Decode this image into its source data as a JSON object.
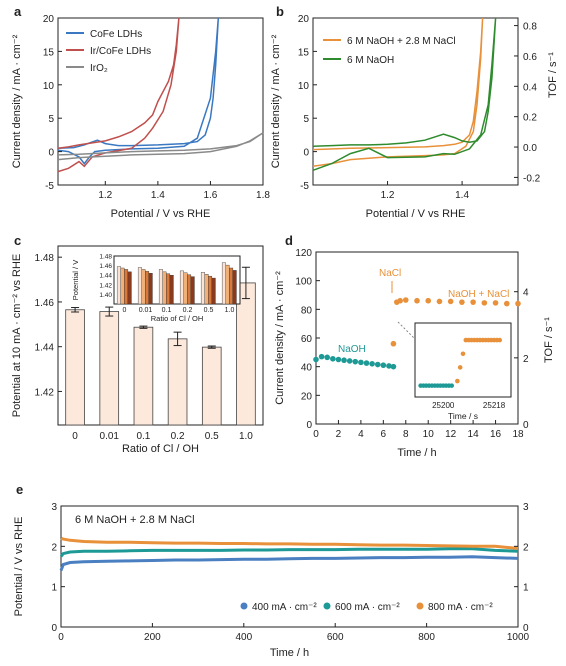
{
  "chart_data": [
    {
      "id": "a",
      "panel_label": "a",
      "type": "line",
      "xlabel": "Potential / V vs RHE",
      "ylabel": "Current density / mA · cm⁻²",
      "xlim": [
        1.02,
        1.8
      ],
      "ylim": [
        -5,
        20
      ],
      "xticks": [
        "1.2",
        "1.4",
        "1.6",
        "1.8"
      ],
      "yticks": [
        "-5",
        "0",
        "5",
        "10",
        "15",
        "20"
      ],
      "legend_position": "top-left",
      "series": [
        {
          "name": "CoFe LDHs",
          "color": "#3a78c2",
          "x": [
            1.02,
            1.08,
            1.1,
            1.12,
            1.14,
            1.17,
            1.2,
            1.25,
            1.3,
            1.4,
            1.5,
            1.55,
            1.58,
            1.6,
            1.61,
            1.62,
            1.63,
            1.62,
            1.6,
            1.55,
            1.5,
            1.4,
            1.3,
            1.2,
            1.16,
            1.14,
            1.12,
            1.1,
            1.06,
            1.02
          ],
          "y": [
            0.5,
            0.6,
            0.8,
            1.0,
            1.3,
            1.7,
            1.2,
            0.9,
            0.9,
            1.0,
            1.2,
            1.5,
            2.5,
            5,
            8,
            13,
            20,
            15,
            8,
            2,
            0.8,
            0.5,
            0.4,
            0.2,
            0.0,
            -0.8,
            -1.8,
            -0.8,
            0.0,
            0.2
          ]
        },
        {
          "name": "Ir/CoFe LDHs",
          "color": "#c0504d",
          "x": [
            1.02,
            1.06,
            1.1,
            1.15,
            1.2,
            1.25,
            1.3,
            1.35,
            1.38,
            1.4,
            1.44,
            1.46,
            1.47,
            1.48,
            1.47,
            1.45,
            1.42,
            1.38,
            1.35,
            1.3,
            1.2,
            1.15,
            1.12,
            1.1,
            1.06,
            1.02
          ],
          "y": [
            0.5,
            0.7,
            1.0,
            1.3,
            1.6,
            2.2,
            3.0,
            4.3,
            5.5,
            7.5,
            10.5,
            13,
            16,
            20,
            15,
            10,
            6,
            3.5,
            2.0,
            0.5,
            -0.2,
            -0.8,
            -2.2,
            -1.5,
            -2.5,
            -3.0
          ]
        },
        {
          "name": "IrO₂",
          "color": "#8a8a8a",
          "x": [
            1.02,
            1.1,
            1.2,
            1.3,
            1.4,
            1.5,
            1.6,
            1.7,
            1.75,
            1.8,
            1.75,
            1.7,
            1.6,
            1.5,
            1.4,
            1.3,
            1.2,
            1.1,
            1.02
          ],
          "y": [
            -0.5,
            -0.4,
            -0.2,
            0,
            0.1,
            0.2,
            0.4,
            0.9,
            1.5,
            2.8,
            1.6,
            0.8,
            0.0,
            -0.3,
            -0.4,
            -0.5,
            -0.7,
            -0.9,
            -1.2
          ]
        }
      ]
    },
    {
      "id": "b",
      "panel_label": "b",
      "type": "line",
      "xlabel": "Potential / V vs RHE",
      "ylabel": "Current density / mA · cm⁻²",
      "ylabel_right": "TOF / s⁻¹",
      "xlim": [
        1.0,
        1.55
      ],
      "ylim": [
        -5,
        20
      ],
      "xticks": [
        "1.2",
        "1.4"
      ],
      "yticks": [
        "-5",
        "0",
        "5",
        "10",
        "15",
        "20"
      ],
      "yticks_right": [
        "-0.2",
        "0.0",
        "0.2",
        "0.4",
        "0.6",
        "0.8"
      ],
      "legend_position": "top-left",
      "series": [
        {
          "name": "6 M NaOH + 2.8 M NaCl",
          "color": "#e8913a",
          "x": [
            1.0,
            1.1,
            1.2,
            1.3,
            1.35,
            1.38,
            1.4,
            1.42,
            1.43,
            1.44,
            1.45,
            1.455,
            1.45,
            1.44,
            1.43,
            1.41,
            1.38,
            1.35,
            1.3,
            1.2,
            1.1,
            1.05,
            1.0
          ],
          "y": [
            0.3,
            0.5,
            0.6,
            0.7,
            0.9,
            1.1,
            1.4,
            2.5,
            4.5,
            9,
            15,
            20,
            14,
            7,
            3,
            0.8,
            -0.3,
            -0.5,
            -0.6,
            -0.8,
            -1.2,
            -1.8,
            -2.2
          ]
        },
        {
          "name": "6 M NaOH",
          "color": "#2e8b2e",
          "x": [
            1.0,
            1.05,
            1.1,
            1.15,
            1.2,
            1.25,
            1.3,
            1.35,
            1.38,
            1.4,
            1.42,
            1.44,
            1.46,
            1.47,
            1.48,
            1.49,
            1.48,
            1.47,
            1.45,
            1.42,
            1.38,
            1.35,
            1.3,
            1.2,
            1.15,
            1.1,
            1.05,
            1.0
          ],
          "y": [
            0.8,
            0.9,
            1.0,
            1.0,
            1.1,
            1.3,
            1.7,
            2.6,
            2.1,
            1.6,
            1.4,
            1.6,
            3.0,
            6,
            11,
            20,
            13,
            7,
            2.5,
            0.4,
            -0.4,
            -0.3,
            -0.8,
            -0.9,
            0.5,
            -0.3,
            -1.8,
            -2.8
          ]
        }
      ]
    },
    {
      "id": "c",
      "panel_label": "c",
      "type": "bar",
      "xlabel": "Ratio of Cl / OH",
      "ylabel": "Potential at 10 mA · cm⁻² vs RHE",
      "categories": [
        "0",
        "0.01",
        "0.1",
        "0.2",
        "0.5",
        "1.0"
      ],
      "values": [
        1.4565,
        1.4557,
        1.4487,
        1.4435,
        1.4398,
        1.4685
      ],
      "errors": [
        0.001,
        0.002,
        0.0005,
        0.003,
        0.0005,
        0.007
      ],
      "ylim": [
        1.405,
        1.485
      ],
      "yticks": [
        "1.42",
        "1.44",
        "1.46",
        "1.48"
      ],
      "bar_color": "#fde8dc",
      "inset": {
        "type": "bar",
        "xlabel": "Ratio of Cl / OH",
        "ylabel": "Potential / V",
        "categories": [
          "0",
          "0.01",
          "0.1",
          "0.2",
          "0.5",
          "1.0"
        ],
        "ylim": [
          1.38,
          1.48
        ],
        "yticks": [
          "1.40",
          "1.42",
          "1.44",
          "1.46",
          "1.48"
        ],
        "colors": [
          "#fbe3d6",
          "#f0b07a",
          "#d97a3c",
          "#8b3a1e"
        ],
        "groups": [
          [
            1.458,
            1.455,
            1.452,
            1.447
          ],
          [
            1.456,
            1.452,
            1.448,
            1.444
          ],
          [
            1.452,
            1.447,
            1.443,
            1.44
          ],
          [
            1.449,
            1.445,
            1.441,
            1.437
          ],
          [
            1.446,
            1.442,
            1.438,
            1.434
          ],
          [
            1.466,
            1.461,
            1.455,
            1.45
          ]
        ]
      }
    },
    {
      "id": "d",
      "panel_label": "d",
      "type": "scatter",
      "xlabel": "Time / h",
      "ylabel": "Current density / mA · cm⁻²",
      "ylabel_right": "TOF / s⁻¹",
      "xlim": [
        0,
        18
      ],
      "ylim": [
        0,
        120
      ],
      "xticks": [
        "0",
        "2",
        "4",
        "6",
        "8",
        "10",
        "12",
        "14",
        "16",
        "18"
      ],
      "yticks": [
        "0",
        "20",
        "40",
        "60",
        "80",
        "100",
        "120"
      ],
      "yticks_right": [
        "0",
        "2",
        "4"
      ],
      "annotations": [
        "NaOH",
        "NaCl",
        "NaOH + NaCl"
      ],
      "series": [
        {
          "name": "NaOH",
          "color": "#1e9a96",
          "x": [
            0,
            0.5,
            1,
            1.5,
            2,
            2.5,
            3,
            3.5,
            4,
            4.5,
            5,
            5.5,
            6,
            6.5,
            6.9
          ],
          "y": [
            45,
            47,
            46.5,
            45.5,
            45,
            44.5,
            44,
            43.5,
            43,
            42.5,
            42,
            41.5,
            41,
            40.5,
            40
          ]
        },
        {
          "name": "NaOH + NaCl",
          "color": "#e8913a",
          "x": [
            6.9,
            7.2,
            7.5,
            8,
            9,
            10,
            11,
            12,
            13,
            14,
            15,
            16,
            17,
            18
          ],
          "y": [
            56,
            85,
            86,
            86.5,
            86,
            86,
            85.5,
            85.5,
            85,
            85,
            84.5,
            84.5,
            84,
            84
          ]
        }
      ],
      "inset": {
        "type": "scatter",
        "xlabel": "Time / s",
        "xticks": [
          "25200",
          "25218"
        ],
        "xlim": [
          25190,
          25224
        ],
        "ylim": [
          30,
          95
        ],
        "series": [
          {
            "color": "#1e9a96",
            "x": [
              25192,
              25193,
              25194,
              25195,
              25196,
              25197,
              25198,
              25199,
              25200,
              25201,
              25202,
              25203
            ],
            "y": [
              40,
              40,
              40,
              40,
              40,
              40,
              40,
              40,
              40,
              40,
              40,
              40
            ]
          },
          {
            "color": "#e8913a",
            "x": [
              25205,
              25206,
              25207,
              25208,
              25209,
              25210,
              25211,
              25212,
              25213,
              25214,
              25215,
              25216,
              25217,
              25218,
              25219,
              25220
            ],
            "y": [
              44,
              56,
              68,
              80,
              80,
              80,
              80,
              80,
              80,
              80,
              80,
              80,
              80,
              80,
              80,
              80
            ]
          }
        ]
      }
    },
    {
      "id": "e",
      "panel_label": "e",
      "type": "scatter",
      "title": "6 M NaOH + 2.8 M NaCl",
      "xlabel": "Time / h",
      "ylabel": "Potential / V vs RHE",
      "xlim": [
        0,
        1000
      ],
      "ylim": [
        0,
        3
      ],
      "xticks": [
        "0",
        "200",
        "400",
        "600",
        "800",
        "1000"
      ],
      "yticks": [
        "0",
        "1",
        "2",
        "3"
      ],
      "legend_position": "bottom-right",
      "series": [
        {
          "name": "400 mA · cm⁻²",
          "color": "#4a7fc1",
          "x": [
            0,
            5,
            20,
            50,
            100,
            150,
            200,
            250,
            300,
            350,
            400,
            450,
            500,
            550,
            600,
            650,
            700,
            750,
            800,
            850,
            900,
            950,
            1000
          ],
          "y": [
            1.4,
            1.55,
            1.6,
            1.62,
            1.63,
            1.64,
            1.65,
            1.66,
            1.66,
            1.67,
            1.68,
            1.68,
            1.69,
            1.7,
            1.7,
            1.71,
            1.72,
            1.72,
            1.73,
            1.73,
            1.74,
            1.72,
            1.7
          ]
        },
        {
          "name": "600 mA · cm⁻²",
          "color": "#1e9a96",
          "x": [
            0,
            5,
            20,
            50,
            100,
            150,
            200,
            250,
            300,
            350,
            400,
            450,
            500,
            550,
            600,
            650,
            700,
            750,
            800,
            850,
            900,
            950,
            1000
          ],
          "y": [
            1.75,
            1.82,
            1.86,
            1.88,
            1.88,
            1.89,
            1.9,
            1.9,
            1.9,
            1.9,
            1.91,
            1.91,
            1.92,
            1.92,
            1.92,
            1.93,
            1.93,
            1.93,
            1.93,
            1.94,
            1.94,
            1.9,
            1.88
          ]
        },
        {
          "name": "800 mA · cm⁻²",
          "color": "#e8913a",
          "x": [
            0,
            5,
            20,
            50,
            100,
            150,
            200,
            250,
            300,
            350,
            400,
            450,
            500,
            550,
            600,
            650,
            700,
            750,
            800,
            850,
            900,
            950,
            1000
          ],
          "y": [
            2.2,
            2.18,
            2.15,
            2.12,
            2.1,
            2.1,
            2.09,
            2.08,
            2.08,
            2.07,
            2.07,
            2.06,
            2.06,
            2.05,
            2.05,
            2.04,
            2.03,
            2.03,
            2.02,
            2.01,
            2.0,
            2.0,
            1.95
          ]
        }
      ]
    }
  ]
}
